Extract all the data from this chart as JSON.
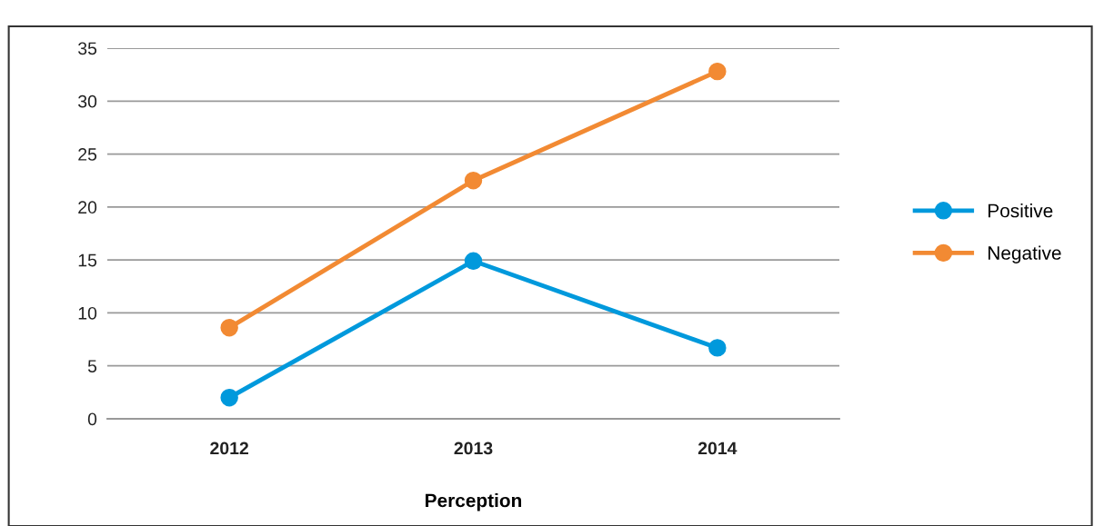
{
  "chart_data": {
    "type": "line",
    "xlabel": "Perception",
    "categories": [
      "2012",
      "2013",
      "2014"
    ],
    "series": [
      {
        "name": "Positive",
        "color": "#0099dc",
        "values": [
          2.0,
          14.9,
          6.7
        ]
      },
      {
        "name": "Negative",
        "color": "#f28a33",
        "values": [
          8.6,
          22.5,
          32.8
        ]
      }
    ],
    "ylim": [
      0,
      35
    ],
    "yticks": [
      0,
      5,
      10,
      15,
      20,
      25,
      30,
      35
    ],
    "grid": "y",
    "legend": "right",
    "marker": "circle",
    "line_style": "solid"
  }
}
